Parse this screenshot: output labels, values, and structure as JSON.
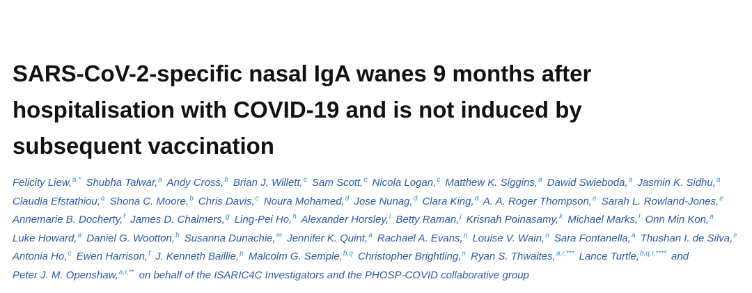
{
  "title_lines": [
    "SARS-CoV-2-specific nasal IgA wanes 9 months after",
    "hospitalisation with COVID-19 and is not induced by",
    "subsequent vaccination"
  ],
  "author_lines": [
    [
      {
        "name": "Felicity Liew,",
        "sup": "a,*"
      },
      {
        "name": "Shubha Talwar,",
        "sup": "a"
      },
      {
        "name": "Andy Cross,",
        "sup": "b"
      },
      {
        "name": "Brian J. Willett,",
        "sup": "c"
      },
      {
        "name": "Sam Scott,",
        "sup": "c"
      },
      {
        "name": "Nicola Logan,",
        "sup": "c"
      },
      {
        "name": "Matthew K. Siggins,",
        "sup": "a"
      },
      {
        "name": "Dawid Swieboda,",
        "sup": "a"
      },
      {
        "name": "Jasmin K. Sidhu,",
        "sup": "a"
      }
    ],
    [
      {
        "name": "Claudia Efstathiou,",
        "sup": "a"
      },
      {
        "name": "Shona C. Moore,",
        "sup": "b"
      },
      {
        "name": "Chris Davis,",
        "sup": "c"
      },
      {
        "name": "Noura Mohamed,",
        "sup": "d"
      },
      {
        "name": "Jose Nunag,",
        "sup": "d"
      },
      {
        "name": "Clara King,",
        "sup": "d"
      },
      {
        "name": "A. A. Roger Thompson,",
        "sup": "e"
      },
      {
        "name": "Sarah L. Rowland-Jones,",
        "sup": "e"
      }
    ],
    [
      {
        "name": "Annemarie B. Docherty,",
        "sup": "f"
      },
      {
        "name": "James D. Chalmers,",
        "sup": "g"
      },
      {
        "name": "Ling-Pei Ho,",
        "sup": "h"
      },
      {
        "name": "Alexander Horsley,",
        "sup": "i"
      },
      {
        "name": "Betty Raman,",
        "sup": "j"
      },
      {
        "name": "Krisnah Poinasamy,",
        "sup": "k"
      },
      {
        "name": "Michael Marks,",
        "sup": "l"
      },
      {
        "name": "Onn Min Kon,",
        "sup": "a"
      }
    ],
    [
      {
        "name": "Luke Howard,",
        "sup": "a"
      },
      {
        "name": "Daniel G. Wootton,",
        "sup": "b"
      },
      {
        "name": "Susanna Dunachie,",
        "sup": "m"
      },
      {
        "name": "Jennifer K. Quint,",
        "sup": "a"
      },
      {
        "name": "Rachael A. Evans,",
        "sup": "n"
      },
      {
        "name": "Louise V. Wain,",
        "sup": "o"
      },
      {
        "name": "Sara Fontanella,",
        "sup": "a"
      },
      {
        "name": "Thushan I. de Silva,",
        "sup": "e"
      }
    ],
    [
      {
        "name": "Antonia Ho,",
        "sup": "c"
      },
      {
        "name": "Ewen Harrison,",
        "sup": "f"
      },
      {
        "name": "J. Kenneth Baillie,",
        "sup": "p"
      },
      {
        "name": "Malcolm G. Semple,",
        "sup": "b,q"
      },
      {
        "name": "Christopher Brightling,",
        "sup": "n"
      },
      {
        "name": "Ryan S. Thwaites,",
        "sup": "a,r,***"
      },
      {
        "name": "Lance Turtle,",
        "sup": "b,q,r,****"
      },
      {
        "name": "and"
      }
    ],
    [
      {
        "name": "Peter J. M. Openshaw,",
        "sup": "a,r,**"
      },
      {
        "name": "on behalf of the ISARIC4C Investigators and the PHOSP-COVID collaborative group"
      }
    ]
  ]
}
